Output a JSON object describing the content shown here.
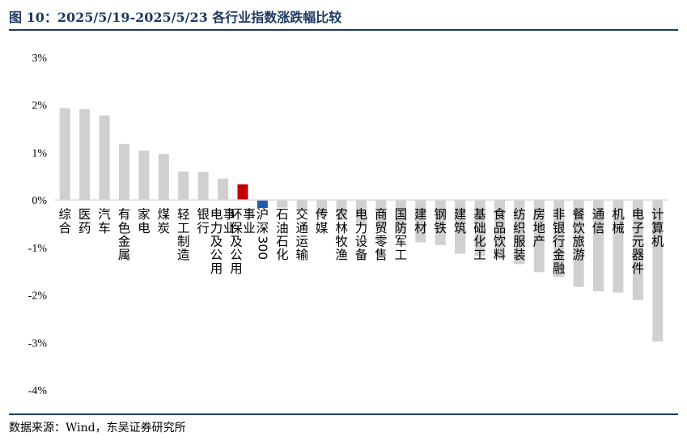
{
  "header": {
    "title": "图 10：2025/5/19-2025/5/23 各行业指数涨跌幅比较"
  },
  "footer": {
    "source": "数据来源：Wind，东吴证券研究所"
  },
  "colors": {
    "default_bar": "#D0D0D0",
    "highlight_bar": "#C00000",
    "index_bar": "#1F5CB0",
    "axis": "#D9D9D9",
    "title_text": "#1F3864",
    "rule": "#1F3864"
  },
  "chart_data": {
    "type": "bar",
    "title": "",
    "xlabel": "",
    "ylabel": "",
    "ylim": [
      -0.04,
      0.03
    ],
    "yticks": [
      0.03,
      0.02,
      0.01,
      0.0,
      -0.01,
      -0.02,
      -0.03,
      -0.04
    ],
    "ytick_labels": [
      "3%",
      "2%",
      "1%",
      "0%",
      "-1%",
      "-2%",
      "-3%",
      "-4%"
    ],
    "grid": false,
    "legend": "none",
    "categories": [
      "综合",
      "医药",
      "汽车",
      "有色金属",
      "家电",
      "煤炭",
      "轻工制造",
      "银行",
      "电力及公用事业",
      "环保及公用事业",
      "沪深300",
      "石油石化",
      "交通运输",
      "传媒",
      "农林牧渔",
      "电力设备",
      "商贸零售",
      "国防军工",
      "建材",
      "钢铁",
      "建筑",
      "基础化工",
      "食品饮料",
      "纺织服装",
      "房地产",
      "非银行金融",
      "餐饮旅游",
      "通信",
      "机械",
      "电子元器件",
      "计算机"
    ],
    "values": [
      0.0193,
      0.0191,
      0.0178,
      0.0118,
      0.0104,
      0.0097,
      0.006,
      0.0059,
      0.0045,
      0.0033,
      -0.0017,
      -0.0016,
      -0.0021,
      -0.0035,
      -0.0043,
      -0.0052,
      -0.0064,
      -0.007,
      -0.0089,
      -0.0095,
      -0.0113,
      -0.0118,
      -0.0124,
      -0.0135,
      -0.0152,
      -0.0162,
      -0.0183,
      -0.0192,
      -0.0195,
      -0.0211,
      -0.0298
    ],
    "highlight": {
      "环保及公用事业": "highlight_bar",
      "沪深300": "index_bar"
    }
  }
}
